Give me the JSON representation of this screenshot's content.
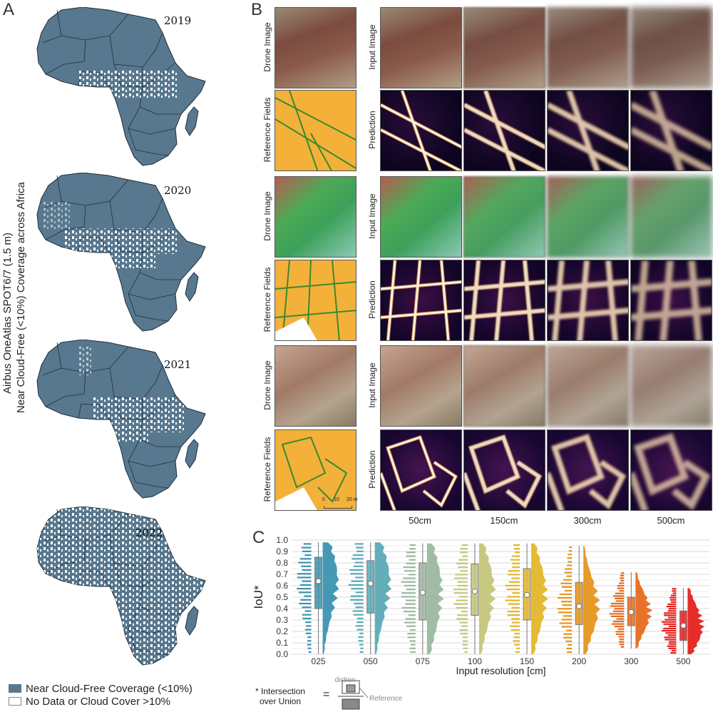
{
  "panel_a": {
    "letter": "A",
    "y_title_line1": "Airbus OneAtlas SPOT6/7 (1.5 m)",
    "y_title_line2": "Near Cloud-Free (<10%) Coverage across Africa",
    "years": [
      "2019",
      "2020",
      "2021",
      "2022"
    ],
    "legend": [
      {
        "label": "Near Cloud-Free Coverage (<10%)",
        "color": "#58788f"
      },
      {
        "label": "No Data or Cloud Cover >10%",
        "color": "#ffffff"
      }
    ]
  },
  "panel_b": {
    "letter": "B",
    "row_labels": {
      "drone": "Drone Image",
      "reference": "Reference Fields",
      "input": "Input Image",
      "prediction": "Prediction"
    },
    "columns": [
      "50cm",
      "150cm",
      "300cm",
      "500cm"
    ],
    "scale_bar": {
      "ticks": [
        "0",
        "10",
        "20 m"
      ]
    }
  },
  "panel_c": {
    "letter": "C",
    "footnote_line1": "* Intersection",
    "footnote_line2": "over Union",
    "footnote_eq": "=",
    "diagram_prediction": "Prediction",
    "diagram_reference": "Reference",
    "chart_data": {
      "type": "violin",
      "xlabel": "Input resolution [cm]",
      "ylabel": "IoU*",
      "ylim": [
        0.0,
        1.0
      ],
      "yticks": [
        "0.0",
        "0.1",
        "0.2",
        "0.3",
        "0.4",
        "0.5",
        "0.6",
        "0.7",
        "0.8",
        "0.9",
        "1.0"
      ],
      "categories": [
        "025",
        "050",
        "075",
        "100",
        "150",
        "200",
        "300",
        "500"
      ],
      "colors": [
        "#3b93b0",
        "#5aaab5",
        "#9cb89f",
        "#c4c67a",
        "#e3b62b",
        "#e6951b",
        "#e86a1f",
        "#e4221d"
      ],
      "median": [
        0.64,
        0.62,
        0.54,
        0.55,
        0.52,
        0.42,
        0.37,
        0.25
      ],
      "q1": [
        0.4,
        0.36,
        0.3,
        0.34,
        0.3,
        0.26,
        0.25,
        0.12
      ],
      "q3": [
        0.85,
        0.82,
        0.8,
        0.79,
        0.75,
        0.63,
        0.5,
        0.38
      ],
      "whisker_low": [
        0.0,
        0.0,
        0.0,
        0.0,
        0.0,
        0.0,
        0.05,
        0.0
      ],
      "whisker_high": [
        0.98,
        0.98,
        0.97,
        0.97,
        0.97,
        0.95,
        0.72,
        0.58
      ],
      "grid": true
    }
  }
}
